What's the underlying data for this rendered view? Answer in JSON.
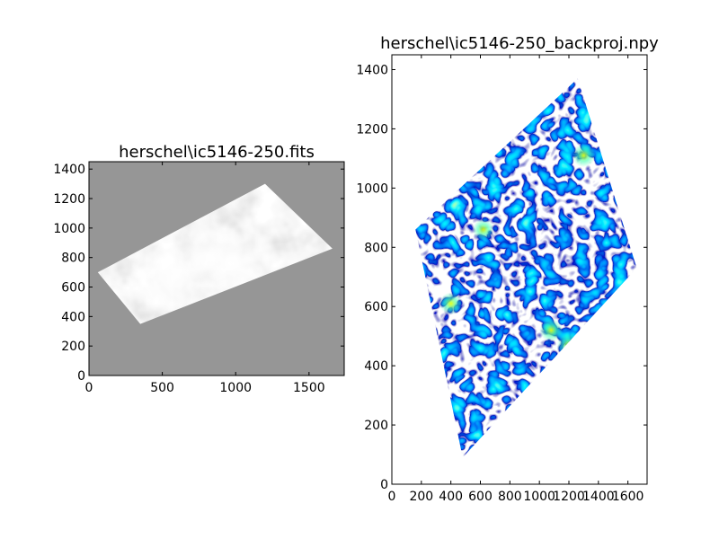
{
  "chart_data": [
    {
      "type": "heatmap",
      "title": "herschel\\ic5146-250.fits",
      "xlim": [
        0,
        1740
      ],
      "ylim": [
        0,
        1450
      ],
      "x_ticks": [
        0,
        500,
        1000,
        1500
      ],
      "y_ticks": [
        0,
        200,
        400,
        600,
        800,
        1000,
        1200,
        1400
      ],
      "colormap": "gray",
      "background_color": "#969696",
      "grid": false,
      "footprint": [
        [
          60,
          700
        ],
        [
          350,
          350
        ],
        [
          1660,
          860
        ],
        [
          1200,
          1300
        ]
      ],
      "bright_cores": [
        {
          "x": 540,
          "y": 630,
          "value": 0.85
        },
        {
          "x": 820,
          "y": 820,
          "value": 0.75
        },
        {
          "x": 1000,
          "y": 760,
          "value": 0.7
        }
      ]
    },
    {
      "type": "heatmap",
      "title": "herschel\\ic5146-250_backproj.npy",
      "xlim": [
        0,
        1730
      ],
      "ylim": [
        0,
        1450
      ],
      "x_ticks": [
        0,
        200,
        400,
        600,
        800,
        1000,
        1200,
        1400,
        1600
      ],
      "y_ticks": [
        0,
        200,
        400,
        600,
        800,
        1000,
        1200,
        1400
      ],
      "colormap": "jet",
      "background_color": "#ffffff",
      "grid": false,
      "footprint": [
        [
          480,
          90
        ],
        [
          1660,
          730
        ],
        [
          1260,
          1370
        ],
        [
          160,
          860
        ]
      ],
      "hot_spots": [
        {
          "x": 1080,
          "y": 520,
          "value": 0.7
        },
        {
          "x": 1200,
          "y": 470,
          "value": 0.75
        },
        {
          "x": 1300,
          "y": 1110,
          "value": 0.7
        },
        {
          "x": 400,
          "y": 610,
          "value": 0.65
        },
        {
          "x": 620,
          "y": 860,
          "value": 0.6
        }
      ]
    }
  ]
}
